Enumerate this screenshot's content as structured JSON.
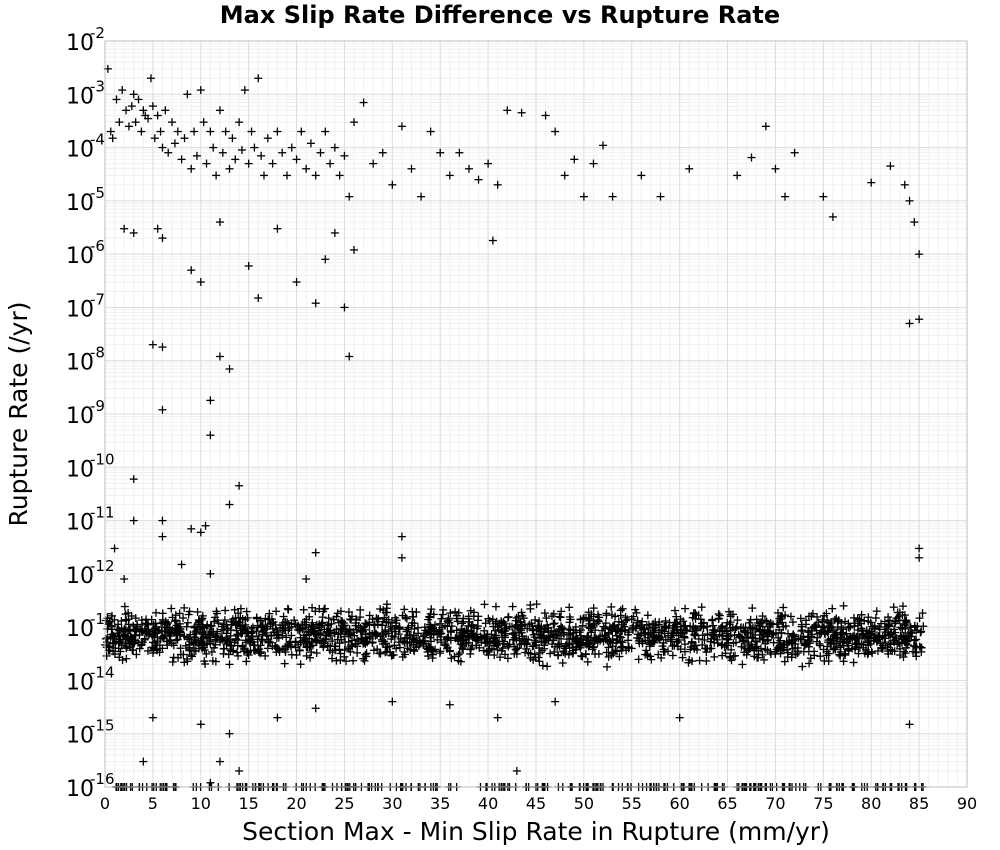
{
  "chart_data": {
    "type": "scatter",
    "title": "Max Slip Rate Difference vs Rupture Rate",
    "xlabel": "Section Max - Min Slip Rate in Rupture (mm/yr)",
    "ylabel": "Rupture Rate (/yr)",
    "xlim": [
      0,
      90
    ],
    "ylim": [
      1e-16,
      0.01
    ],
    "y_scale": "log",
    "x_ticks": [
      0,
      5,
      10,
      15,
      20,
      25,
      30,
      35,
      40,
      45,
      50,
      55,
      60,
      65,
      70,
      75,
      80,
      85,
      90
    ],
    "y_ticks": [
      {
        "base": "10",
        "exp": "-2",
        "value": 0.01
      },
      {
        "base": "10",
        "exp": "-3",
        "value": 0.001
      },
      {
        "base": "10",
        "exp": "-4",
        "value": 0.0001
      },
      {
        "base": "10",
        "exp": "-5",
        "value": 1e-05
      },
      {
        "base": "10",
        "exp": "-6",
        "value": 1e-06
      },
      {
        "base": "10",
        "exp": "-7",
        "value": 1e-07
      },
      {
        "base": "10",
        "exp": "-8",
        "value": 1e-08
      },
      {
        "base": "10",
        "exp": "-9",
        "value": 1e-09
      },
      {
        "base": "10",
        "exp": "-10",
        "value": 1e-10
      },
      {
        "base": "10",
        "exp": "-11",
        "value": 1e-11
      },
      {
        "base": "10",
        "exp": "-12",
        "value": 1e-12
      },
      {
        "base": "10",
        "exp": "-13",
        "value": 1e-13
      },
      {
        "base": "10",
        "exp": "-14",
        "value": 1e-14
      },
      {
        "base": "10",
        "exp": "-15",
        "value": 1e-15
      },
      {
        "base": "10",
        "exp": "-16",
        "value": 1e-16
      }
    ],
    "grid": true,
    "marker": "plus",
    "marker_color": "#000000",
    "series": [
      {
        "points": [
          [
            0.3,
            0.003
          ],
          [
            0.6,
            0.0002
          ],
          [
            0.8,
            0.00015
          ],
          [
            1.2,
            0.0008
          ],
          [
            1.5,
            0.0003
          ],
          [
            1.8,
            0.0012
          ],
          [
            2.2,
            0.0005
          ],
          [
            2.5,
            0.00025
          ],
          [
            2.8,
            0.0006
          ],
          [
            3.0,
            0.001
          ],
          [
            3.2,
            0.0003
          ],
          [
            3.5,
            0.0008
          ],
          [
            3.8,
            0.0002
          ],
          [
            4.0,
            0.0005
          ],
          [
            4.2,
            0.0004
          ],
          [
            4.5,
            0.00035
          ],
          [
            4.8,
            0.002
          ],
          [
            5.0,
            0.0006
          ],
          [
            5.2,
            0.00015
          ],
          [
            5.5,
            0.0004
          ],
          [
            5.8,
            0.0002
          ],
          [
            6.0,
            0.0001
          ],
          [
            6.3,
            0.0005
          ],
          [
            6.6,
            8e-05
          ],
          [
            7.0,
            0.0003
          ],
          [
            7.3,
            0.00012
          ],
          [
            7.6,
            0.0002
          ],
          [
            8.0,
            6e-05
          ],
          [
            8.3,
            0.00015
          ],
          [
            8.6,
            0.001
          ],
          [
            9.0,
            4e-05
          ],
          [
            9.3,
            0.0002
          ],
          [
            9.6,
            7e-05
          ],
          [
            10.0,
            0.0012
          ],
          [
            10.3,
            0.0003
          ],
          [
            10.6,
            5e-05
          ],
          [
            11.0,
            0.0002
          ],
          [
            11.3,
            0.0001
          ],
          [
            11.6,
            3e-05
          ],
          [
            12.0,
            0.0005
          ],
          [
            12.3,
            8e-05
          ],
          [
            12.6,
            0.0002
          ],
          [
            13.0,
            4e-05
          ],
          [
            13.3,
            0.00015
          ],
          [
            13.6,
            6e-05
          ],
          [
            14.0,
            0.0003
          ],
          [
            14.3,
            9e-05
          ],
          [
            14.6,
            0.0012
          ],
          [
            15.0,
            5e-05
          ],
          [
            15.3,
            0.0002
          ],
          [
            15.6,
            0.0001
          ],
          [
            16.0,
            0.002
          ],
          [
            16.3,
            7e-05
          ],
          [
            16.6,
            3e-05
          ],
          [
            17.0,
            0.00015
          ],
          [
            17.5,
            5e-05
          ],
          [
            18.0,
            0.0002
          ],
          [
            18.5,
            8e-05
          ],
          [
            19.0,
            3e-05
          ],
          [
            19.5,
            0.0001
          ],
          [
            20.0,
            6e-05
          ],
          [
            20.5,
            0.0002
          ],
          [
            21.0,
            4e-05
          ],
          [
            21.5,
            0.00012
          ],
          [
            22.0,
            3e-05
          ],
          [
            22.5,
            8e-05
          ],
          [
            23.0,
            0.0002
          ],
          [
            23.5,
            5e-05
          ],
          [
            24.0,
            0.0001
          ],
          [
            24.5,
            3e-05
          ],
          [
            25.0,
            7e-05
          ],
          [
            25.5,
            1.2e-05
          ],
          [
            26.0,
            0.0003
          ],
          [
            27.0,
            0.0007
          ],
          [
            28.0,
            5e-05
          ],
          [
            29.0,
            8e-05
          ],
          [
            30.0,
            2e-05
          ],
          [
            31.0,
            0.00025
          ],
          [
            32.0,
            4e-05
          ],
          [
            33.0,
            1.2e-05
          ],
          [
            34.0,
            0.0002
          ],
          [
            35.0,
            8e-05
          ],
          [
            36.0,
            3e-05
          ],
          [
            37.0,
            8e-05
          ],
          [
            38.0,
            4e-05
          ],
          [
            39.0,
            2.5e-05
          ],
          [
            40.0,
            5e-05
          ],
          [
            40.5,
            1.8e-06
          ],
          [
            41.0,
            2e-05
          ],
          [
            42.0,
            0.0005
          ],
          [
            43.5,
            0.00045
          ],
          [
            46.0,
            0.0004
          ],
          [
            47.0,
            0.0002
          ],
          [
            48.0,
            3e-05
          ],
          [
            49.0,
            6e-05
          ],
          [
            50.0,
            1.2e-05
          ],
          [
            51.0,
            5e-05
          ],
          [
            52.0,
            0.00011
          ],
          [
            53.0,
            1.2e-05
          ],
          [
            56.0,
            3e-05
          ],
          [
            58.0,
            1.2e-05
          ],
          [
            61.0,
            4e-05
          ],
          [
            66.0,
            3e-05
          ],
          [
            67.5,
            6.5e-05
          ],
          [
            69.0,
            0.00025
          ],
          [
            70.0,
            4e-05
          ],
          [
            71.0,
            1.2e-05
          ],
          [
            72.0,
            8e-05
          ],
          [
            75.0,
            1.2e-05
          ],
          [
            76.0,
            5e-06
          ],
          [
            80.0,
            2.2e-05
          ],
          [
            82.0,
            4.5e-05
          ],
          [
            83.5,
            2e-05
          ],
          [
            84.0,
            1e-05
          ],
          [
            84.5,
            4e-06
          ],
          [
            85.0,
            1e-06
          ],
          [
            2.0,
            3e-06
          ],
          [
            3.0,
            2.5e-06
          ],
          [
            5.5,
            3e-06
          ],
          [
            6.0,
            2e-06
          ],
          [
            9.0,
            5e-07
          ],
          [
            10.0,
            3e-07
          ],
          [
            12.0,
            4e-06
          ],
          [
            15.0,
            6e-07
          ],
          [
            16.0,
            1.5e-07
          ],
          [
            18.0,
            3e-06
          ],
          [
            20.0,
            3e-07
          ],
          [
            22.0,
            1.2e-07
          ],
          [
            23.0,
            8e-07
          ],
          [
            25.0,
            1e-07
          ],
          [
            26.0,
            1.2e-06
          ],
          [
            24.0,
            2.5e-06
          ],
          [
            5.0,
            2e-08
          ],
          [
            6.0,
            1.8e-08
          ],
          [
            12.0,
            1.2e-08
          ],
          [
            13.0,
            7e-09
          ],
          [
            6.0,
            1.2e-09
          ],
          [
            11.0,
            1.8e-09
          ],
          [
            11.0,
            4e-10
          ],
          [
            14.0,
            4.5e-11
          ],
          [
            13.0,
            2e-11
          ],
          [
            3.0,
            6e-11
          ],
          [
            25.5,
            1.2e-08
          ],
          [
            84.0,
            5e-08
          ],
          [
            85.0,
            6e-08
          ],
          [
            3.0,
            1e-11
          ],
          [
            6.0,
            1e-11
          ],
          [
            6.0,
            5e-12
          ],
          [
            9.0,
            7e-12
          ],
          [
            10.0,
            6e-12
          ],
          [
            10.5,
            8e-12
          ],
          [
            1.0,
            3e-12
          ],
          [
            31.0,
            5e-12
          ],
          [
            31.0,
            2e-12
          ],
          [
            22.0,
            2.5e-12
          ],
          [
            85.0,
            3e-12
          ],
          [
            85.0,
            2e-12
          ],
          [
            2.0,
            8e-13
          ],
          [
            8.0,
            1.5e-12
          ],
          [
            11.0,
            1e-12
          ],
          [
            21.0,
            8e-13
          ],
          [
            1.0,
            6e-14
          ],
          [
            3.0,
            5e-14
          ],
          [
            6.0,
            4e-14
          ],
          [
            9.0,
            3e-14
          ],
          [
            13.0,
            2e-14
          ],
          [
            15.0,
            3e-14
          ],
          [
            17.0,
            4e-14
          ],
          [
            20.0,
            3e-14
          ],
          [
            23.0,
            6e-14
          ],
          [
            27.0,
            5e-14
          ],
          [
            30.0,
            3e-14
          ],
          [
            34.0,
            4e-14
          ],
          [
            38.0,
            6e-14
          ],
          [
            44.0,
            5e-14
          ],
          [
            48.0,
            4e-14
          ],
          [
            53.0,
            6e-14
          ],
          [
            57.0,
            5e-14
          ],
          [
            62.0,
            6e-14
          ],
          [
            68.0,
            4e-14
          ],
          [
            73.0,
            5e-14
          ],
          [
            78.0,
            4e-14
          ],
          [
            83.0,
            3e-14
          ],
          [
            5.0,
            2e-15
          ],
          [
            10.0,
            1.5e-15
          ],
          [
            13.0,
            1e-15
          ],
          [
            18.0,
            2e-15
          ],
          [
            22.0,
            3e-15
          ],
          [
            30.0,
            4e-15
          ],
          [
            36.0,
            3.5e-15
          ],
          [
            41.0,
            2e-15
          ],
          [
            47.0,
            4e-15
          ],
          [
            60.0,
            2e-15
          ],
          [
            84.0,
            1.5e-15
          ],
          [
            4.0,
            3e-16
          ],
          [
            12.0,
            3e-16
          ],
          [
            14.0,
            2e-16
          ],
          [
            43.0,
            2e-16
          ],
          [
            11.0,
            1.2e-16
          ]
        ]
      }
    ],
    "dense_band": {
      "x_range": [
        0,
        85.5
      ],
      "y_center": 7e-14,
      "count": 2200
    },
    "floor_band": {
      "x_range": [
        0,
        85.5
      ],
      "y_value": 1e-16,
      "count": 260
    }
  }
}
